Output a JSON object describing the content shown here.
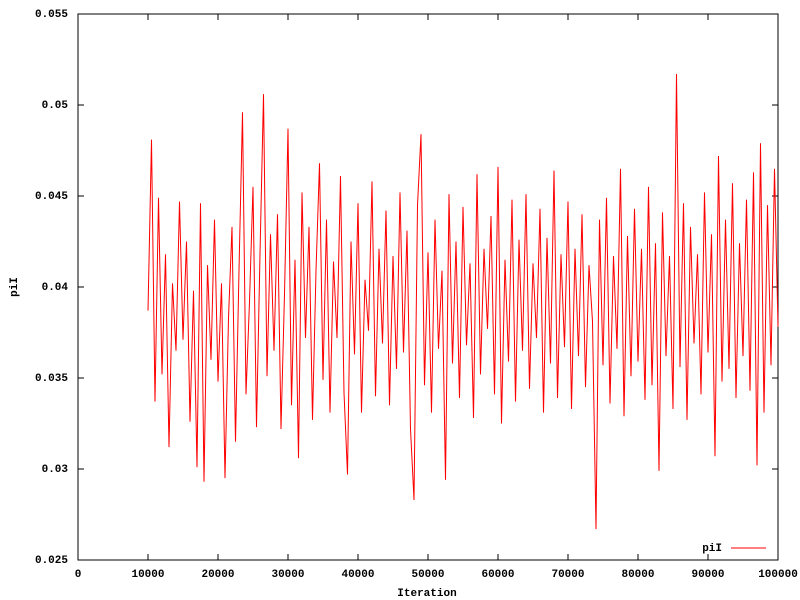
{
  "chart_data": {
    "type": "line",
    "xlabel": "Iteration",
    "ylabel": "piI",
    "xlim": [
      0,
      100000
    ],
    "xticks": [
      0,
      10000,
      20000,
      30000,
      40000,
      50000,
      60000,
      70000,
      80000,
      90000,
      100000
    ],
    "ylim": [
      0.025,
      0.055
    ],
    "yticks": [
      0.025,
      0.03,
      0.035,
      0.04,
      0.045,
      0.05,
      0.055
    ],
    "legend": "bottom-right",
    "series": [
      {
        "name": "piI",
        "color": "#ff0000",
        "x": [
          10000,
          10500,
          11000,
          11500,
          12000,
          12500,
          13000,
          13500,
          14000,
          14500,
          15000,
          15500,
          16000,
          16500,
          17000,
          17500,
          18000,
          18500,
          19000,
          19500,
          20000,
          20500,
          21000,
          21500,
          22000,
          22500,
          23000,
          23500,
          24000,
          24500,
          25000,
          25500,
          26000,
          26500,
          27000,
          27500,
          28000,
          28500,
          29000,
          29500,
          30000,
          30500,
          31000,
          31500,
          32000,
          32500,
          33000,
          33500,
          34000,
          34500,
          35000,
          35500,
          36000,
          36500,
          37000,
          37500,
          38000,
          38500,
          39000,
          39500,
          40000,
          40500,
          41000,
          41500,
          42000,
          42500,
          43000,
          43500,
          44000,
          44500,
          45000,
          45500,
          46000,
          46500,
          47000,
          47500,
          48000,
          48500,
          49000,
          49500,
          50000,
          50500,
          51000,
          51500,
          52000,
          52500,
          53000,
          53500,
          54000,
          54500,
          55000,
          55500,
          56000,
          56500,
          57000,
          57500,
          58000,
          58500,
          59000,
          59500,
          60000,
          60500,
          61000,
          61500,
          62000,
          62500,
          63000,
          63500,
          64000,
          64500,
          65000,
          65500,
          66000,
          66500,
          67000,
          67500,
          68000,
          68500,
          69000,
          69500,
          70000,
          70500,
          71000,
          71500,
          72000,
          72500,
          73000,
          73500,
          74000,
          74500,
          75000,
          75500,
          76000,
          76500,
          77000,
          77500,
          78000,
          78500,
          79000,
          79500,
          80000,
          80500,
          81000,
          81500,
          82000,
          82500,
          83000,
          83500,
          84000,
          84500,
          85000,
          85500,
          86000,
          86500,
          87000,
          87500,
          88000,
          88500,
          89000,
          89500,
          90000,
          90500,
          91000,
          91500,
          92000,
          92500,
          93000,
          93500,
          94000,
          94500,
          95000,
          95500,
          96000,
          96500,
          97000,
          97500,
          98000,
          98500,
          99000,
          99500,
          100000
        ],
        "values": [
          0.0387,
          0.0481,
          0.0337,
          0.0449,
          0.0352,
          0.0418,
          0.0312,
          0.0402,
          0.0365,
          0.0447,
          0.0371,
          0.0425,
          0.0326,
          0.0398,
          0.0301,
          0.0446,
          0.0293,
          0.0412,
          0.036,
          0.0437,
          0.0348,
          0.0402,
          0.0295,
          0.0383,
          0.0433,
          0.0315,
          0.0409,
          0.0496,
          0.0341,
          0.0392,
          0.0455,
          0.0323,
          0.0418,
          0.0506,
          0.0351,
          0.0429,
          0.0365,
          0.044,
          0.0322,
          0.0396,
          0.0487,
          0.0335,
          0.0415,
          0.0306,
          0.0452,
          0.0372,
          0.0433,
          0.0327,
          0.0409,
          0.0468,
          0.0349,
          0.0437,
          0.0331,
          0.0414,
          0.0372,
          0.0461,
          0.0342,
          0.0297,
          0.0425,
          0.0363,
          0.0446,
          0.0331,
          0.0404,
          0.0376,
          0.0458,
          0.034,
          0.0421,
          0.0369,
          0.0442,
          0.0335,
          0.0417,
          0.0355,
          0.0452,
          0.0364,
          0.0431,
          0.0322,
          0.0283,
          0.0445,
          0.0484,
          0.0346,
          0.0419,
          0.0331,
          0.0437,
          0.0366,
          0.0409,
          0.0294,
          0.0451,
          0.0358,
          0.0425,
          0.0339,
          0.0444,
          0.0368,
          0.0413,
          0.0328,
          0.0462,
          0.0352,
          0.0421,
          0.0377,
          0.0439,
          0.0341,
          0.0466,
          0.0325,
          0.0415,
          0.0359,
          0.0448,
          0.0337,
          0.0426,
          0.0365,
          0.0451,
          0.0344,
          0.0413,
          0.0372,
          0.0443,
          0.0331,
          0.0427,
          0.0358,
          0.0464,
          0.0339,
          0.0418,
          0.0367,
          0.0447,
          0.0333,
          0.0421,
          0.0362,
          0.044,
          0.0345,
          0.0412,
          0.0381,
          0.0267,
          0.0437,
          0.0357,
          0.0449,
          0.0336,
          0.0417,
          0.0366,
          0.0465,
          0.0329,
          0.0428,
          0.0351,
          0.0443,
          0.0359,
          0.0421,
          0.0338,
          0.0455,
          0.0346,
          0.0424,
          0.0299,
          0.0441,
          0.0362,
          0.0417,
          0.0333,
          0.0517,
          0.0356,
          0.0446,
          0.0327,
          0.0433,
          0.0369,
          0.0418,
          0.0341,
          0.0452,
          0.0364,
          0.0429,
          0.0307,
          0.0472,
          0.0348,
          0.0437,
          0.0355,
          0.0457,
          0.0339,
          0.0424,
          0.0362,
          0.0448,
          0.0343,
          0.0463,
          0.0302,
          0.0479,
          0.0331,
          0.0445,
          0.0357,
          0.0465,
          0.0378
        ]
      }
    ]
  }
}
